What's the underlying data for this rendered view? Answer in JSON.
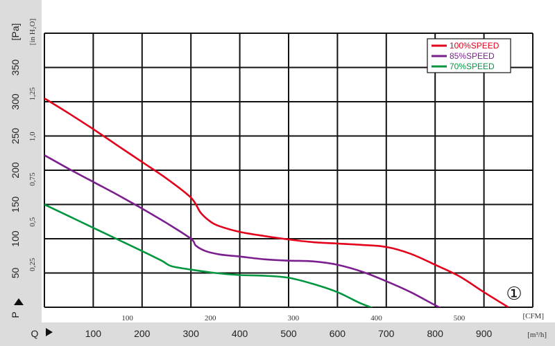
{
  "chart_data": {
    "type": "line",
    "title": "",
    "x_axis_cmh": {
      "label": "Q",
      "unit": "[m³/h]",
      "ticks": [
        100,
        200,
        300,
        400,
        500,
        600,
        700,
        800,
        900
      ],
      "range": [
        0,
        1000
      ]
    },
    "x_axis_cfm": {
      "unit": "[CFM]",
      "ticks": [
        100,
        200,
        300,
        400,
        500
      ],
      "factor_cmh_per_cfm": 1.699
    },
    "y_axis_pa": {
      "label": "P",
      "unit": "[Pa]",
      "ticks": [
        50,
        100,
        150,
        200,
        250,
        300,
        350
      ],
      "range": [
        0,
        400
      ]
    },
    "y_axis_inh2o": {
      "unit": "[in H₂O]",
      "ticks": [
        "0,25",
        "0,5",
        "0,75",
        "1,0",
        "1,25"
      ],
      "tick_values": [
        0.25,
        0.5,
        0.75,
        1.0,
        1.25
      ],
      "factor_pa_per_inh2o": 249.1
    },
    "grid": true,
    "legend_position": "top-right",
    "annotation": "①",
    "series": [
      {
        "name": "100%SPEED",
        "color": "#e3001b",
        "x": [
          0,
          50,
          100,
          150,
          200,
          250,
          300,
          320,
          340,
          360,
          400,
          450,
          500,
          550,
          600,
          650,
          700,
          750,
          800,
          850,
          900,
          950
        ],
        "y": [
          305,
          283,
          260,
          236,
          212,
          188,
          160,
          138,
          125,
          118,
          110,
          104,
          99,
          95,
          93,
          91,
          88,
          78,
          62,
          45,
          22,
          0
        ]
      },
      {
        "name": "85%SPEED",
        "color": "#7b1e8e",
        "x": [
          0,
          50,
          100,
          150,
          200,
          250,
          300,
          310,
          330,
          360,
          400,
          450,
          500,
          550,
          600,
          650,
          700,
          750,
          800,
          850
        ],
        "y": [
          222,
          202,
          183,
          164,
          144,
          123,
          100,
          90,
          82,
          77,
          74,
          70,
          68,
          67,
          62,
          52,
          38,
          22,
          3,
          -15
        ]
      },
      {
        "name": "70%SPEED",
        "color": "#00963f",
        "x": [
          0,
          50,
          100,
          150,
          200,
          240,
          260,
          300,
          350,
          400,
          450,
          500,
          550,
          600,
          650,
          700
        ],
        "y": [
          150,
          133,
          116,
          99,
          82,
          68,
          60,
          55,
          50,
          47,
          46,
          43,
          34,
          22,
          5,
          -8
        ]
      }
    ]
  }
}
